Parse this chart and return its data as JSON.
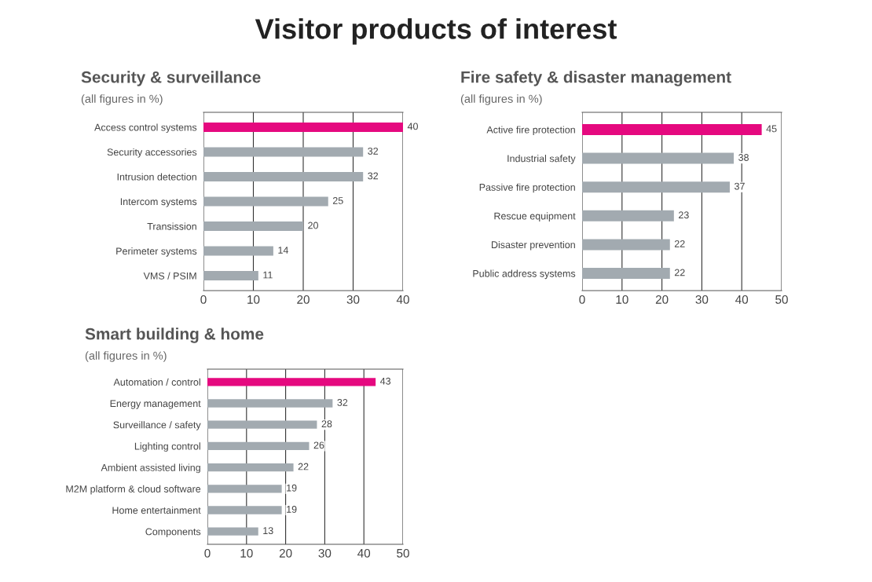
{
  "chart_data": [
    {
      "type": "bar",
      "orientation": "horizontal",
      "title": "Security & surveillance",
      "subtitle": "(all figures in %)",
      "annotations": [
        "Visitor products of interest"
      ],
      "categories": [
        "Access control systems",
        "Security accessories",
        "Intrusion detection",
        "Intercom systems",
        "Transission",
        "Perimeter systems",
        "VMS / PSIM"
      ],
      "values": [
        40,
        32,
        32,
        25,
        20,
        14,
        11
      ],
      "colors": [
        "#e5097f",
        "#a2aab0",
        "#a2aab0",
        "#a2aab0",
        "#a2aab0",
        "#a2aab0",
        "#a2aab0"
      ],
      "xlim": [
        0,
        40
      ],
      "xticks": [
        0,
        10,
        20,
        30,
        40
      ],
      "grid": "x",
      "data_labels": true
    },
    {
      "type": "bar",
      "orientation": "horizontal",
      "title": "Fire safety & disaster management",
      "subtitle": "(all figures in %)",
      "categories": [
        "Active fire protection",
        "Industrial safety",
        "Passive fire protection",
        "Rescue equipment",
        "Disaster prevention",
        "Public address systems"
      ],
      "values": [
        45,
        38,
        37,
        23,
        22,
        22
      ],
      "colors": [
        "#e5097f",
        "#a2aab0",
        "#a2aab0",
        "#a2aab0",
        "#a2aab0",
        "#a2aab0"
      ],
      "xlim": [
        0,
        50
      ],
      "xticks": [
        0,
        10,
        20,
        30,
        40,
        50
      ],
      "grid": "x",
      "data_labels": true
    },
    {
      "type": "bar",
      "orientation": "horizontal",
      "title": "Smart building & home",
      "subtitle": "(all figures in %)",
      "categories": [
        "Automation / control",
        "Energy management",
        "Surveillance / safety",
        "Lighting control",
        "Ambient assisted living",
        "M2M platform & cloud software",
        "Home entertainment",
        "Components"
      ],
      "values": [
        43,
        32,
        28,
        26,
        22,
        19,
        19,
        13
      ],
      "colors": [
        "#e5097f",
        "#a2aab0",
        "#a2aab0",
        "#a2aab0",
        "#a2aab0",
        "#a2aab0",
        "#a2aab0",
        "#a2aab0"
      ],
      "xlim": [
        0,
        50
      ],
      "xticks": [
        0,
        10,
        20,
        30,
        40,
        50
      ],
      "grid": "x",
      "data_labels": true
    }
  ]
}
